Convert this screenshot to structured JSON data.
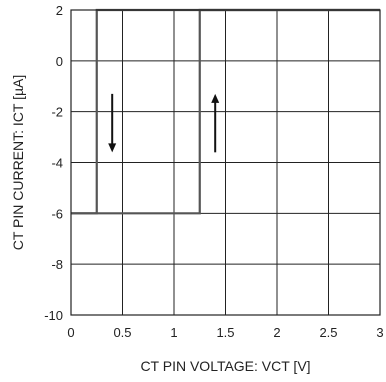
{
  "chart_data": {
    "type": "line",
    "title": "",
    "xlabel": "CT PIN VOLTAGE: VCT [V]",
    "ylabel": "CT PIN CURRENT: ICT [µA]",
    "xlim": [
      0,
      3
    ],
    "ylim": [
      -10,
      2
    ],
    "x_ticks": [
      0,
      0.5,
      1,
      1.5,
      2,
      2.5,
      3
    ],
    "x_tick_labels": [
      "0",
      "0.5",
      "1",
      "1.5",
      "2",
      "2.5",
      "3"
    ],
    "y_ticks": [
      -10,
      -8,
      -6,
      -4,
      -2,
      0,
      2
    ],
    "y_tick_labels": [
      "-10",
      "-8",
      "-6",
      "-4",
      "-2",
      "0",
      "2"
    ],
    "grid": true,
    "series": [
      {
        "x": [
          0,
          1.25,
          1.25,
          3
        ],
        "y": [
          -6,
          -6,
          2,
          2
        ]
      },
      {
        "x": [
          3,
          0.25,
          0.25,
          0
        ],
        "y": [
          2,
          2,
          -6,
          -6
        ]
      }
    ],
    "annotations": [
      {
        "type": "arrow",
        "direction": "down",
        "x": 0.4,
        "y_from": -1.3,
        "y_to": -3.6
      },
      {
        "type": "arrow",
        "direction": "up",
        "x": 1.4,
        "y_from": -3.6,
        "y_to": -1.3
      }
    ],
    "colors": {
      "line": "#555555",
      "grid": "#222222",
      "arrow": "#111111",
      "text": "#222222"
    }
  }
}
